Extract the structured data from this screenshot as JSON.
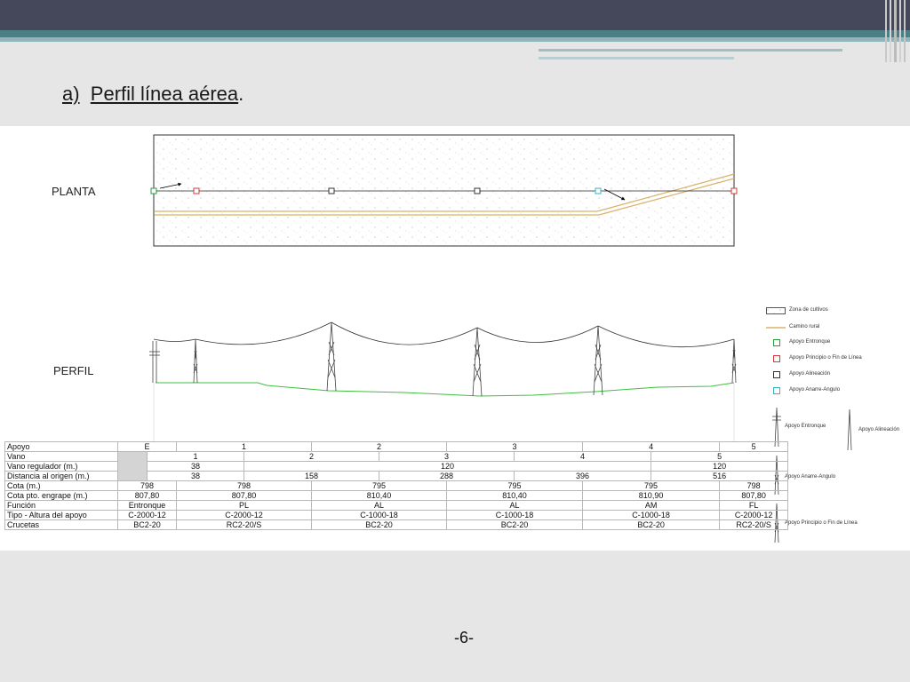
{
  "title": {
    "prefix": "a)",
    "text": "Perfil línea aérea",
    "suffix": "."
  },
  "labels": {
    "planta": "PLANTA",
    "perfil": "PERFIL"
  },
  "legend": [
    {
      "name": "zona-cultivos",
      "text": "Zona de cultivos",
      "color": "#999999"
    },
    {
      "name": "camino-rural",
      "text": "Camino rural",
      "color": "#d9b26b"
    },
    {
      "name": "apoyo-entronque",
      "text": "Apoyo Entronque",
      "color": "#2a9d3c"
    },
    {
      "name": "apoyo-principio-fin",
      "text": "Apoyo Principio o Fin de Línea",
      "color": "#d23a3a"
    },
    {
      "name": "apoyo-alineacion",
      "text": "Apoyo Alineación",
      "color": "#333333"
    },
    {
      "name": "apoyo-anarre",
      "text": "Apoyo Anarre-Angulo",
      "color": "#37b6c8"
    }
  ],
  "tower_legend": {
    "entronque": "Apoyo Entronque",
    "alineacion": "Apoyo Alineación",
    "anarre": "Apoyo Anarre-Angulo",
    "principio_fin": "Apoyo Principio o Fin de Línea"
  },
  "table": {
    "apoyo_label": "Apoyo",
    "apoyos": [
      "E",
      "1",
      "2",
      "3",
      "4",
      "5"
    ],
    "vano_label": "Vano",
    "vanos": [
      "1",
      "2",
      "3",
      "4",
      "5"
    ],
    "vano_reg_label": "Vano regulador (m.)",
    "vano_reg": [
      "38",
      "120",
      "120"
    ],
    "dist_label": "Distancia al origen (m.)",
    "dist": [
      "38",
      "158",
      "288",
      "396",
      "516"
    ],
    "cota_label": "Cota (m.)",
    "cota": [
      "798",
      "798",
      "795",
      "795",
      "795",
      "798"
    ],
    "engrape_label": "Cota pto. engrape (m.)",
    "engrape": [
      "807,80",
      "807,80",
      "810,40",
      "810,40",
      "810,90",
      "807,80"
    ],
    "funcion_label": "Función",
    "funcion": [
      "Entronque",
      "PL",
      "AL",
      "AL",
      "AM",
      "FL"
    ],
    "tipo_label": "Tipo - Altura del apoyo",
    "tipo": [
      "C-2000-12",
      "C-2000-12",
      "C-1000-18",
      "C-1000-18",
      "C-1000-18",
      "C-2000-12"
    ],
    "crucetas_label": "Crucetas",
    "crucetas": [
      "BC2-20",
      "RC2-20/S",
      "BC2-20",
      "BC2-20",
      "BC2-20",
      "RC2-20/S"
    ]
  },
  "page_number": "-6-"
}
